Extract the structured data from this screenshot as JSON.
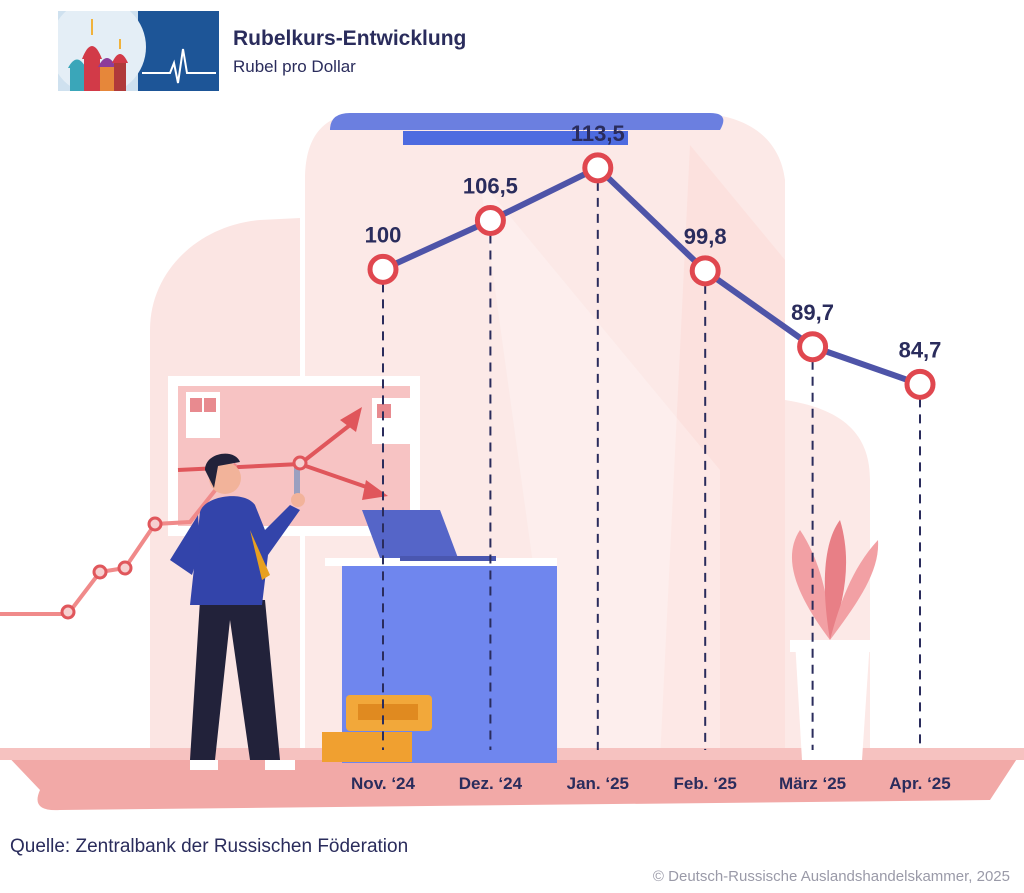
{
  "header": {
    "title": "Rubelkurs-Entwicklung",
    "subtitle": "Rubel pro Dollar"
  },
  "chart_data": {
    "type": "line",
    "title": "Rubelkurs-Entwicklung",
    "subtitle": "Rubel pro Dollar",
    "xlabel": "",
    "ylabel": "Rubel pro Dollar",
    "categories": [
      "Nov. ‘24",
      "Dez. ‘24",
      "Jan. ‘25",
      "Feb. ‘25",
      "März ‘25",
      "Apr. ‘25"
    ],
    "values": [
      100,
      106.5,
      113.5,
      99.8,
      89.7,
      84.7
    ],
    "value_labels": [
      "100",
      "106,5",
      "113,5",
      "99,8",
      "89,7",
      "84,7"
    ],
    "ylim": [
      60,
      120
    ],
    "grid": false,
    "legend": "none",
    "colors": {
      "line": "#4e54a8",
      "marker": "#e0474f",
      "label": "#2a2c5c",
      "drop_line": "#2a2c5c"
    }
  },
  "footer": {
    "source": "Quelle: Zentralbank der Russischen Föderation",
    "copyright": "© Deutsch-Russische Auslandshandelskammer, 2025"
  }
}
